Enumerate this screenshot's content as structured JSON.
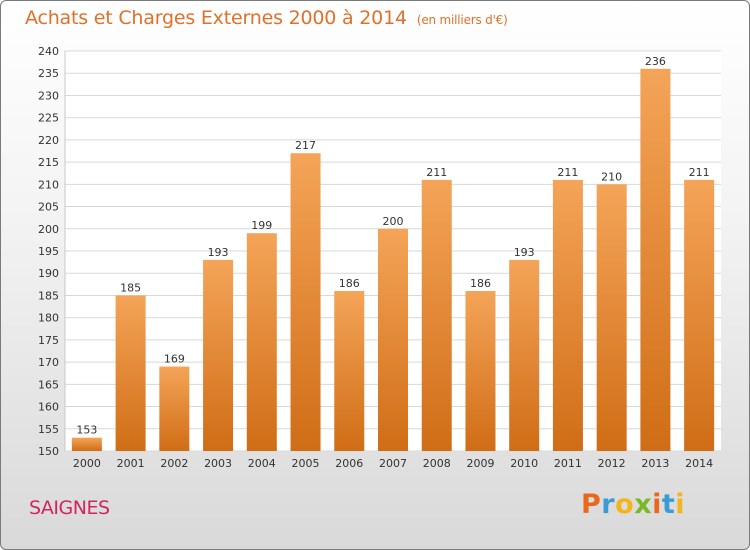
{
  "header": {
    "title": "Achats et Charges Externes 2000 à 2014",
    "subtitle": "(en milliers d'€)"
  },
  "footer": {
    "commune": "SAIGNES",
    "logo_text": "Proxiti",
    "logo_colors": [
      "#e8691e",
      "#3a9bd5",
      "#f2b51d",
      "#7ab829",
      "#e8691e",
      "#3a9bd5",
      "#f2b51d"
    ]
  },
  "colors": {
    "bar_top": "#f4a458",
    "bar_bottom": "#d06d16",
    "title": "#e0702a",
    "commune": "#d0265e"
  },
  "chart_data": {
    "type": "bar",
    "categories": [
      "2000",
      "2001",
      "2002",
      "2003",
      "2004",
      "2005",
      "2006",
      "2007",
      "2008",
      "2009",
      "2010",
      "2011",
      "2012",
      "2013",
      "2014"
    ],
    "values": [
      153,
      185,
      169,
      193,
      199,
      217,
      186,
      200,
      211,
      186,
      193,
      211,
      210,
      236,
      211
    ],
    "title": "Achats et Charges Externes 2000 à 2014",
    "xlabel": "",
    "ylabel": "",
    "ylim": [
      150,
      240
    ],
    "ytick_step": 5,
    "grid": true,
    "legend": "none"
  }
}
